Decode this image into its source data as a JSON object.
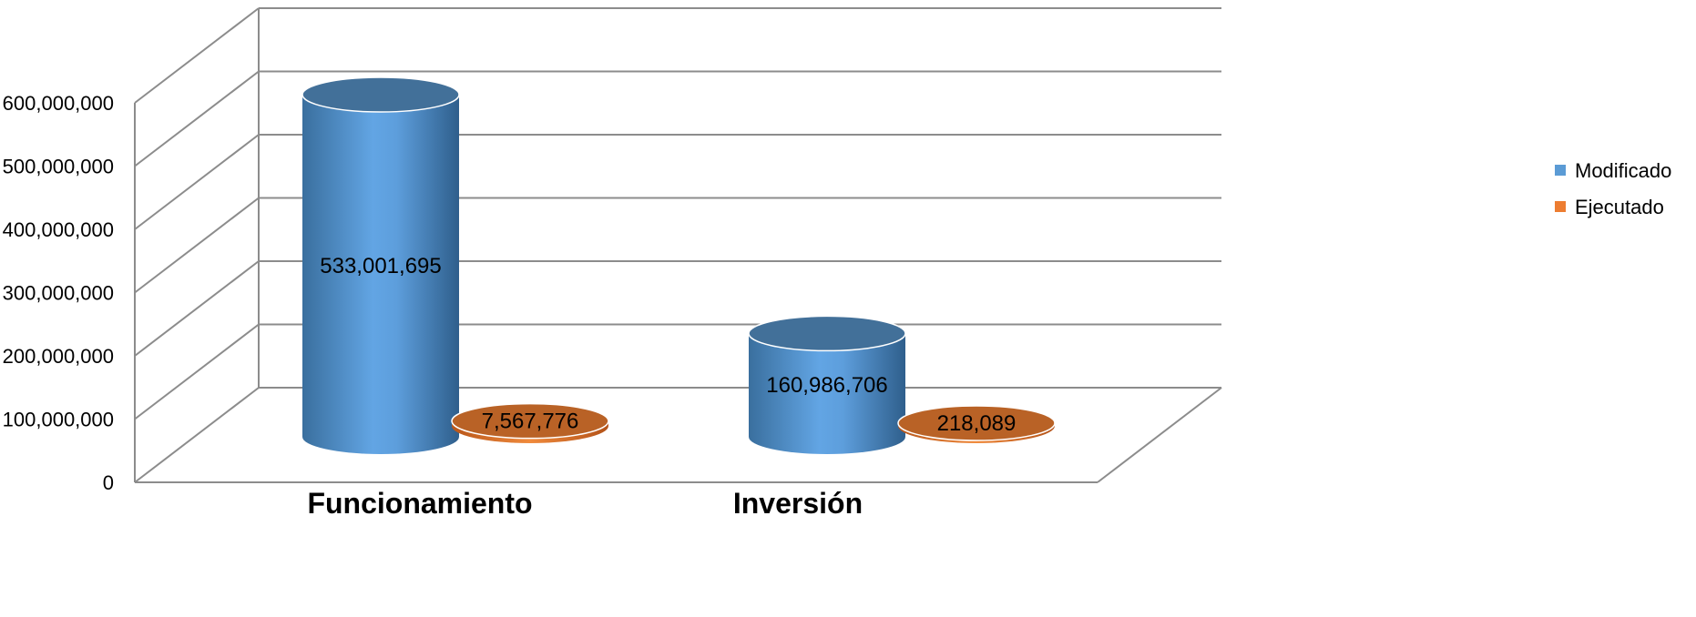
{
  "chart_data": {
    "type": "bar",
    "categories": [
      "Funcionamiento",
      "Inversión"
    ],
    "series": [
      {
        "name": "Modificado",
        "values": [
          533001695,
          160986706
        ],
        "color": "#5b9bd5"
      },
      {
        "name": "Ejecutado",
        "values": [
          7567776,
          218089
        ],
        "color": "#ed7d31"
      }
    ],
    "data_labels": [
      [
        "533,001,695",
        "160,986,706"
      ],
      [
        "7,567,776",
        "218,089"
      ]
    ],
    "y_ticks": [
      "0",
      "100,000,000",
      "200,000,000",
      "300,000,000",
      "400,000,000",
      "500,000,000",
      "600,000,000"
    ],
    "ylim": [
      0,
      600000000
    ],
    "style": "3d-cylinder",
    "grid": true,
    "legend_position": "right"
  }
}
